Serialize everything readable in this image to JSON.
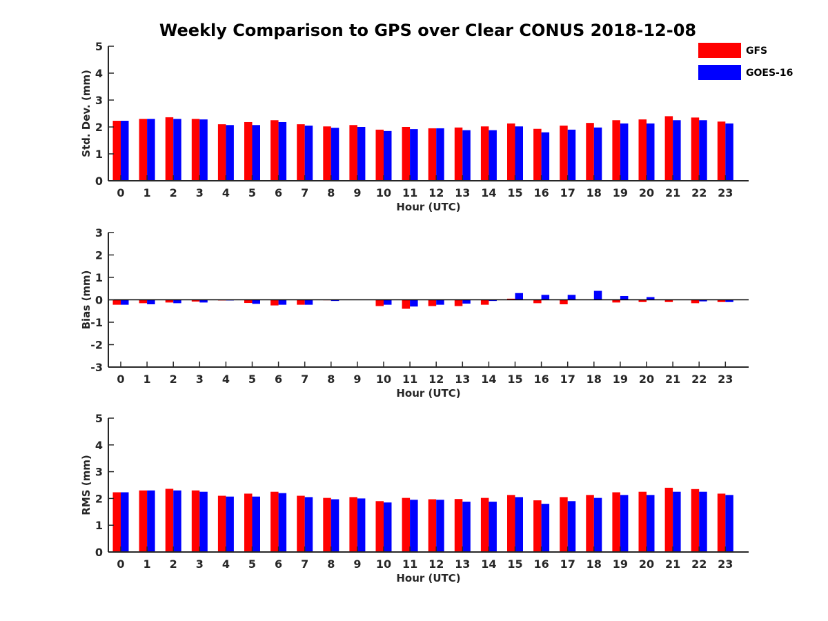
{
  "title": "Weekly Comparison to GPS over Clear CONUS 2018-12-08",
  "legend": [
    {
      "name": "GFS",
      "color": "#ff0000"
    },
    {
      "name": "GOES-16",
      "color": "#0000ff"
    }
  ],
  "chart_data": [
    {
      "type": "bar",
      "xlabel": "Hour (UTC)",
      "ylabel": "Std. Dev. (mm)",
      "ylim": [
        0,
        5
      ],
      "yticks": [
        0,
        1,
        2,
        3,
        4,
        5
      ],
      "categories": [
        "0",
        "1",
        "2",
        "3",
        "4",
        "5",
        "6",
        "7",
        "8",
        "9",
        "10",
        "11",
        "12",
        "13",
        "14",
        "15",
        "16",
        "17",
        "18",
        "19",
        "20",
        "21",
        "22",
        "23"
      ],
      "series": [
        {
          "name": "GFS",
          "color": "#ff0000",
          "values": [
            2.23,
            2.3,
            2.36,
            2.3,
            2.1,
            2.18,
            2.25,
            2.1,
            2.02,
            2.07,
            1.9,
            2.0,
            1.95,
            1.98,
            2.02,
            2.13,
            1.93,
            2.05,
            2.15,
            2.25,
            2.28,
            2.4,
            2.35,
            2.2
          ]
        },
        {
          "name": "GOES-16",
          "color": "#0000ff",
          "values": [
            2.23,
            2.3,
            2.3,
            2.28,
            2.07,
            2.07,
            2.18,
            2.05,
            1.97,
            2.0,
            1.85,
            1.92,
            1.95,
            1.88,
            1.88,
            2.02,
            1.8,
            1.9,
            1.98,
            2.13,
            2.13,
            2.25,
            2.25,
            2.13
          ]
        }
      ]
    },
    {
      "type": "bar",
      "xlabel": "Hour (UTC)",
      "ylabel": "Bias (mm)",
      "ylim": [
        -3,
        3
      ],
      "yticks": [
        -3,
        -2,
        -1,
        0,
        1,
        2,
        3
      ],
      "categories": [
        "0",
        "1",
        "2",
        "3",
        "4",
        "5",
        "6",
        "7",
        "8",
        "9",
        "10",
        "11",
        "12",
        "13",
        "14",
        "15",
        "16",
        "17",
        "18",
        "19",
        "20",
        "21",
        "22",
        "23"
      ],
      "series": [
        {
          "name": "GFS",
          "color": "#ff0000",
          "values": [
            -0.22,
            -0.15,
            -0.12,
            -0.08,
            -0.03,
            -0.14,
            -0.25,
            -0.22,
            -0.02,
            0.0,
            -0.28,
            -0.4,
            -0.28,
            -0.28,
            -0.22,
            0.05,
            -0.15,
            -0.2,
            0.0,
            -0.12,
            -0.1,
            -0.1,
            -0.15,
            -0.1
          ]
        },
        {
          "name": "GOES-16",
          "color": "#0000ff",
          "values": [
            -0.22,
            -0.2,
            -0.15,
            -0.12,
            -0.03,
            -0.18,
            -0.22,
            -0.22,
            -0.05,
            0.0,
            -0.22,
            -0.3,
            -0.22,
            -0.17,
            -0.05,
            0.3,
            0.22,
            0.22,
            0.4,
            0.17,
            0.12,
            0.0,
            -0.07,
            -0.1
          ]
        }
      ]
    },
    {
      "type": "bar",
      "xlabel": "Hour (UTC)",
      "ylabel": "RMS (mm)",
      "ylim": [
        0,
        5
      ],
      "yticks": [
        0,
        1,
        2,
        3,
        4,
        5
      ],
      "categories": [
        "0",
        "1",
        "2",
        "3",
        "4",
        "5",
        "6",
        "7",
        "8",
        "9",
        "10",
        "11",
        "12",
        "13",
        "14",
        "15",
        "16",
        "17",
        "18",
        "19",
        "20",
        "21",
        "22",
        "23"
      ],
      "series": [
        {
          "name": "GFS",
          "color": "#ff0000",
          "values": [
            2.23,
            2.3,
            2.36,
            2.3,
            2.1,
            2.18,
            2.25,
            2.1,
            2.02,
            2.05,
            1.9,
            2.02,
            1.97,
            1.98,
            2.02,
            2.13,
            1.93,
            2.05,
            2.13,
            2.23,
            2.25,
            2.4,
            2.35,
            2.18
          ]
        },
        {
          "name": "GOES-16",
          "color": "#0000ff",
          "values": [
            2.23,
            2.3,
            2.3,
            2.25,
            2.07,
            2.07,
            2.2,
            2.05,
            1.97,
            2.0,
            1.85,
            1.95,
            1.95,
            1.88,
            1.88,
            2.05,
            1.8,
            1.9,
            2.02,
            2.13,
            2.13,
            2.25,
            2.25,
            2.13
          ]
        }
      ]
    }
  ]
}
